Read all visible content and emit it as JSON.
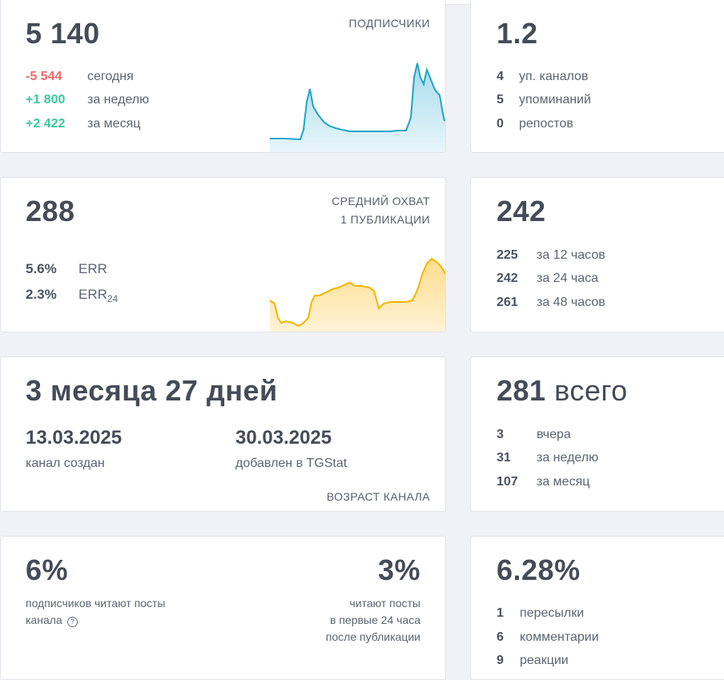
{
  "subscribers": {
    "value": "5 140",
    "caption": "ПОДПИСЧИКИ",
    "rows": [
      {
        "num": "-5 544",
        "label": "сегодня"
      },
      {
        "num": "+1 800",
        "label": "за неделю"
      },
      {
        "num": "+2 422",
        "label": "за месяц"
      }
    ],
    "sparkline_color": "#1fa5c7"
  },
  "citation": {
    "value": "1.2",
    "rows": [
      {
        "num": "4",
        "label": "уп. каналов"
      },
      {
        "num": "5",
        "label": "упоминаний"
      },
      {
        "num": "0",
        "label": "репостов"
      }
    ]
  },
  "reach": {
    "value": "288",
    "caption_line1": "СРЕДНИЙ ОХВАТ",
    "caption_line2": "1 ПУБЛИКАЦИИ",
    "rows": [
      {
        "num": "5.6%",
        "label": "ERR"
      },
      {
        "num": "2.3%",
        "label": "ERR",
        "sub": "24"
      }
    ],
    "sparkline_color": "#f4b400"
  },
  "views": {
    "value": "242",
    "rows": [
      {
        "num": "225",
        "label": "за 12 часов"
      },
      {
        "num": "242",
        "label": "за 24 часа"
      },
      {
        "num": "261",
        "label": "за 48 часов"
      }
    ]
  },
  "age": {
    "value": "3 месяца 27 дней",
    "created_date": "13.03.2025",
    "created_label": "канал создан",
    "added_date": "30.03.2025",
    "added_label": "добавлен в TGStat",
    "caption": "ВОЗРАСТ КАНАЛА"
  },
  "posts": {
    "value": "281",
    "unit": "всего",
    "rows": [
      {
        "num": "3",
        "label": "вчера"
      },
      {
        "num": "31",
        "label": "за неделю"
      },
      {
        "num": "107",
        "label": "за месяц"
      }
    ]
  },
  "readers": {
    "left_value": "6%",
    "left_text_line1": "подписчиков читают посты",
    "left_text_line2": "канала",
    "help_icon": "?",
    "right_value": "3%",
    "right_text_line1": "читают посты",
    "right_text_line2": "в первые 24 часа",
    "right_text_line3": "после публикации"
  },
  "engagement": {
    "value": "6.28%",
    "rows": [
      {
        "num": "1",
        "label": "пересылки"
      },
      {
        "num": "6",
        "label": "комментарии"
      },
      {
        "num": "9",
        "label": "реакции"
      }
    ]
  }
}
